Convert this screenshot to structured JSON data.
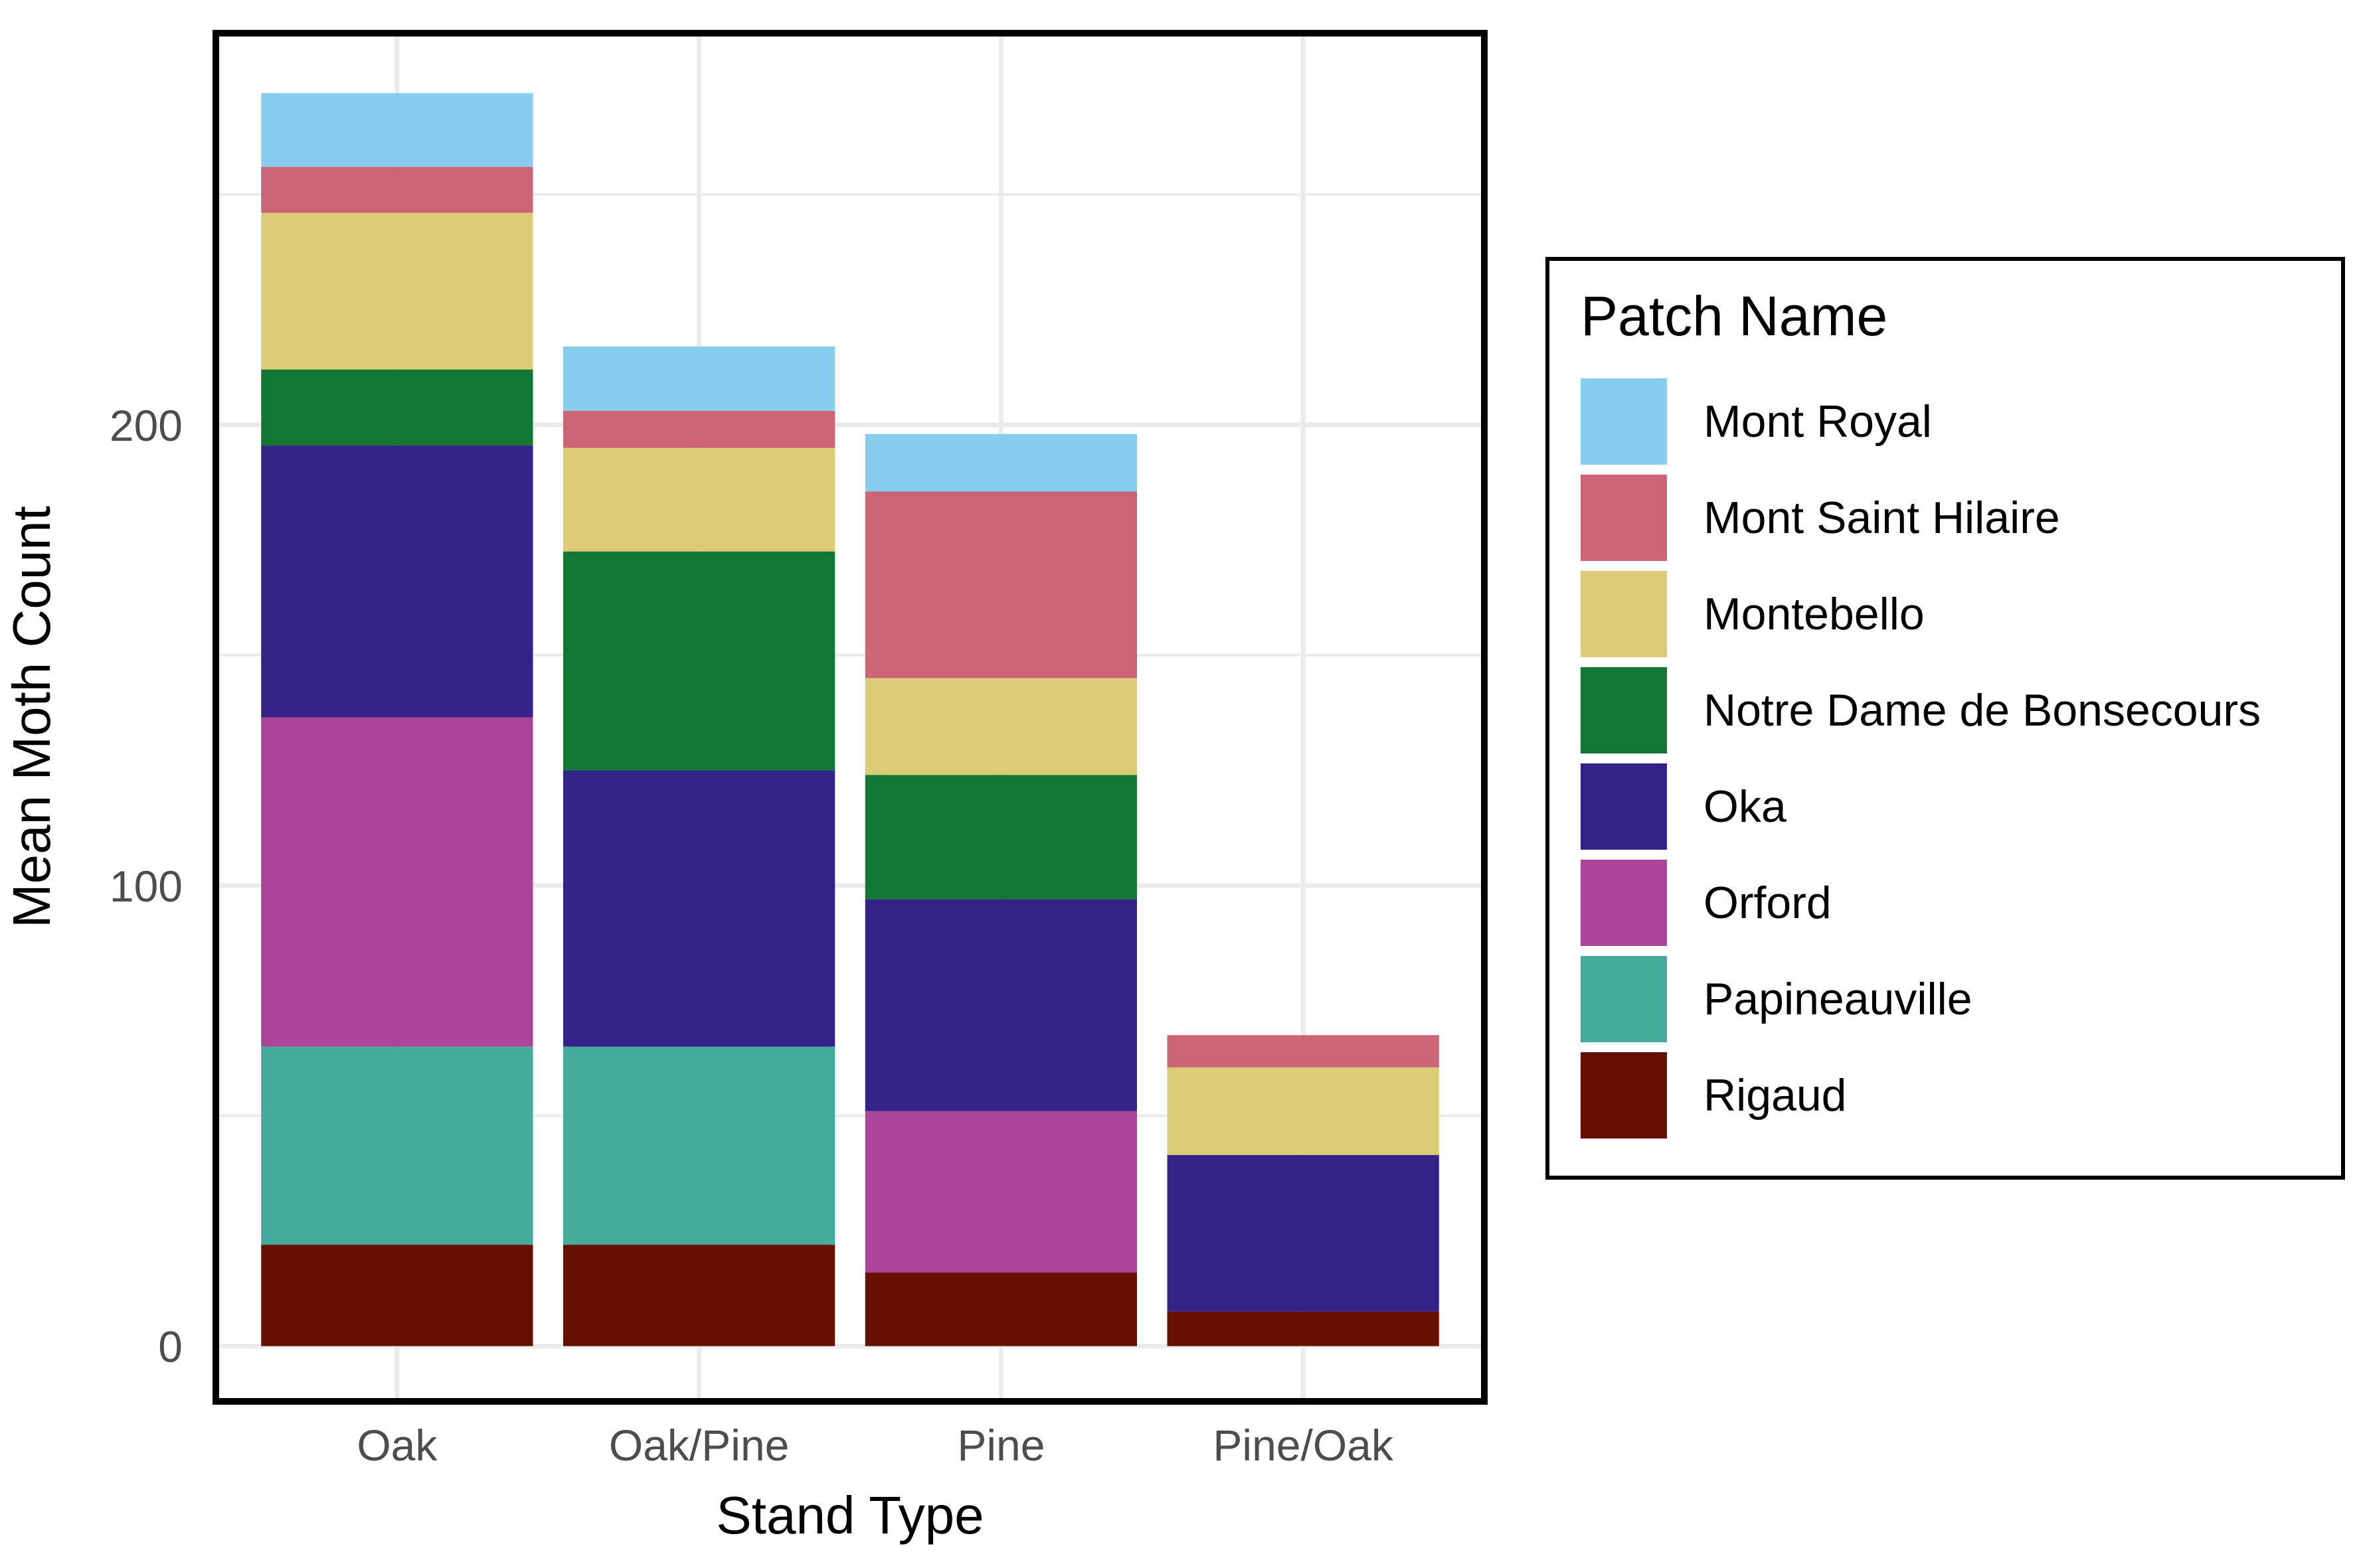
{
  "chart_data": {
    "type": "bar",
    "stacked": true,
    "categories": [
      "Oak",
      "Oak/Pine",
      "Pine",
      "Pine/Oak"
    ],
    "xlabel": "Stand Type",
    "ylabel": "Mean Moth Count",
    "ylim": [
      -12,
      285
    ],
    "yticks": [
      0,
      100,
      200
    ],
    "grid": true,
    "legend": {
      "title": "Patch Name",
      "position": "right"
    },
    "series": [
      {
        "name": "Rigaud",
        "color": "#661100",
        "values": [
          22,
          22,
          16,
          7.5
        ]
      },
      {
        "name": "Papineauville",
        "color": "#44AA99",
        "values": [
          43,
          43,
          0,
          0
        ]
      },
      {
        "name": "Orford",
        "color": "#AA4499",
        "values": [
          71.5,
          0,
          35,
          0
        ]
      },
      {
        "name": "Oka",
        "color": "#332288",
        "values": [
          59,
          60,
          46,
          34
        ]
      },
      {
        "name": "Notre Dame de Bonsecours",
        "color": "#117733",
        "values": [
          16.5,
          47.5,
          27,
          0
        ]
      },
      {
        "name": "Montebello",
        "color": "#DDCC77",
        "values": [
          34,
          22.5,
          21,
          19
        ]
      },
      {
        "name": "Mont Saint Hilaire",
        "color": "#CC6677",
        "values": [
          10,
          8,
          40.5,
          7
        ]
      },
      {
        "name": "Mont Royal",
        "color": "#88CCEE",
        "values": [
          16,
          14,
          12.5,
          0
        ]
      }
    ],
    "legend_order": [
      "Mont Royal",
      "Mont Saint Hilaire",
      "Montebello",
      "Notre Dame de Bonsecours",
      "Oka",
      "Orford",
      "Papineauville",
      "Rigaud"
    ]
  }
}
